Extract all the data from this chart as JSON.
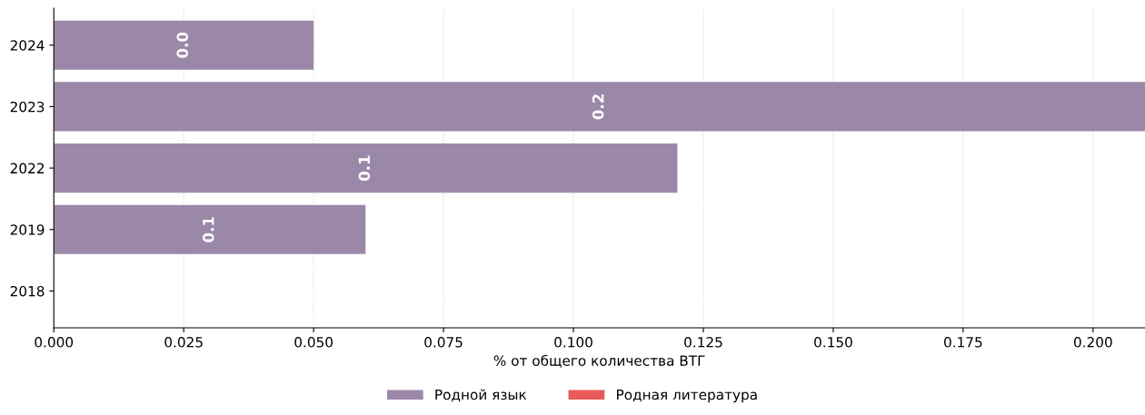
{
  "chart_data": {
    "type": "bar",
    "orientation": "horizontal",
    "xlabel": "% от общего количества ВТГ",
    "categories": [
      "2024",
      "2023",
      "2022",
      "2019",
      "2018"
    ],
    "series": [
      {
        "name": "Родной язык",
        "color": "#9b88a9",
        "values": [
          0.05,
          0.21,
          0.12,
          0.06,
          null
        ],
        "value_labels": [
          "0.0",
          "0.2",
          "0.1",
          "0.1",
          null
        ]
      },
      {
        "name": "Родная литература",
        "color": "#e85a5a",
        "values": [
          null,
          null,
          null,
          null,
          null
        ]
      }
    ],
    "xlim": [
      0,
      0.21
    ],
    "xticks": [
      {
        "value": 0,
        "label": "0.000"
      },
      {
        "value": 0.025,
        "label": "0.025"
      },
      {
        "value": 0.05,
        "label": "0.050"
      },
      {
        "value": 0.075,
        "label": "0.075"
      },
      {
        "value": 0.1,
        "label": "0.100"
      },
      {
        "value": 0.125,
        "label": "0.125"
      },
      {
        "value": 0.15,
        "label": "0.150"
      },
      {
        "value": 0.175,
        "label": "0.175"
      },
      {
        "value": 0.2,
        "label": "0.200"
      }
    ],
    "grid": "x",
    "legend": "bottom"
  }
}
